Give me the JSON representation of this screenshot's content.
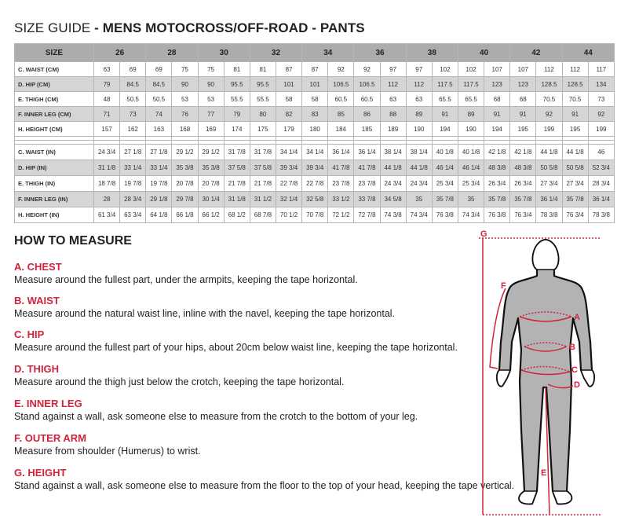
{
  "title": {
    "prefix": "SIZE GUIDE",
    "bold": " - MENS MOTOCROSS/OFF-ROAD - PANTS"
  },
  "table": {
    "size_label": "SIZE",
    "sizes": [
      "26",
      "28",
      "30",
      "32",
      "34",
      "36",
      "38",
      "40",
      "42",
      "44"
    ],
    "cm_rows": [
      {
        "label": "C. WAIST (CM)",
        "values": [
          "63",
          "69",
          "69",
          "75",
          "75",
          "81",
          "81",
          "87",
          "87",
          "92",
          "92",
          "97",
          "97",
          "102",
          "102",
          "107",
          "107",
          "112",
          "112",
          "117"
        ]
      },
      {
        "label": "D. HIP (CM)",
        "values": [
          "79",
          "84.5",
          "84.5",
          "90",
          "90",
          "95.5",
          "95.5",
          "101",
          "101",
          "106.5",
          "106.5",
          "112",
          "112",
          "117.5",
          "117.5",
          "123",
          "123",
          "128.5",
          "128.5",
          "134"
        ]
      },
      {
        "label": "E. THIGH (CM)",
        "values": [
          "48",
          "50.5",
          "50.5",
          "53",
          "53",
          "55.5",
          "55.5",
          "58",
          "58",
          "60.5",
          "60.5",
          "63",
          "63",
          "65.5",
          "65.5",
          "68",
          "68",
          "70.5",
          "70.5",
          "73"
        ]
      },
      {
        "label": "F. INNER LEG (CM)",
        "values": [
          "71",
          "73",
          "74",
          "76",
          "77",
          "79",
          "80",
          "82",
          "83",
          "85",
          "86",
          "88",
          "89",
          "91",
          "89",
          "91",
          "91",
          "92",
          "91",
          "92"
        ]
      },
      {
        "label": "H. HEIGHT (CM)",
        "values": [
          "157",
          "162",
          "163",
          "168",
          "169",
          "174",
          "175",
          "179",
          "180",
          "184",
          "185",
          "189",
          "190",
          "194",
          "190",
          "194",
          "195",
          "199",
          "195",
          "199"
        ]
      }
    ],
    "in_rows": [
      {
        "label": "C. WAIST (IN)",
        "values": [
          "24 3/4",
          "27 1/8",
          "27 1/8",
          "29 1/2",
          "29 1/2",
          "31 7/8",
          "31 7/8",
          "34 1/4",
          "34 1/4",
          "36 1/4",
          "36 1/4",
          "38 1/4",
          "38 1/4",
          "40 1/8",
          "40 1/8",
          "42 1/8",
          "42 1/8",
          "44 1/8",
          "44 1/8",
          "46"
        ]
      },
      {
        "label": "D. HIP (IN)",
        "values": [
          "31 1/8",
          "33 1/4",
          "33 1/4",
          "35 3/8",
          "35 3/8",
          "37 5/8",
          "37 5/8",
          "39 3/4",
          "39 3/4",
          "41 7/8",
          "41 7/8",
          "44 1/8",
          "44 1/8",
          "46 1/4",
          "46 1/4",
          "48 3/8",
          "48 3/8",
          "50 5/8",
          "50 5/8",
          "52 3/4"
        ]
      },
      {
        "label": "E. THIGH (IN)",
        "values": [
          "18 7/8",
          "19 7/8",
          "19 7/8",
          "20 7/8",
          "20 7/8",
          "21 7/8",
          "21 7/8",
          "22 7/8",
          "22 7/8",
          "23 7/8",
          "23 7/8",
          "24 3/4",
          "24 3/4",
          "25 3/4",
          "25 3/4",
          "26 3/4",
          "26 3/4",
          "27 3/4",
          "27 3/4",
          "28 3/4"
        ]
      },
      {
        "label": "F. INNER LEG (IN)",
        "values": [
          "28",
          "28 3/4",
          "29 1/8",
          "29 7/8",
          "30 1/4",
          "31 1/8",
          "31 1/2",
          "32 1/4",
          "32 5/8",
          "33 1/2",
          "33 7/8",
          "34 5/8",
          "35",
          "35 7/8",
          "35",
          "35 7/8",
          "35 7/8",
          "36 1/4",
          "35 7/8",
          "36 1/4"
        ]
      },
      {
        "label": "H. HEIGHT (IN)",
        "values": [
          "61 3/4",
          "63 3/4",
          "64 1/8",
          "66 1/8",
          "66 1/2",
          "68 1/2",
          "68 7/8",
          "70 1/2",
          "70 7/8",
          "72 1/2",
          "72 7/8",
          "74 3/8",
          "74 3/4",
          "76 3/8",
          "74 3/4",
          "76 3/8",
          "76 3/4",
          "78 3/8",
          "76 3/4",
          "78 3/8"
        ]
      }
    ]
  },
  "how_to_measure": {
    "title": "HOW TO MEASURE",
    "items": [
      {
        "heading": "A. CHEST",
        "text": "Measure around the fullest part, under the armpits, keeping the tape horizontal."
      },
      {
        "heading": "B. WAIST",
        "text": "Measure around the natural waist line, inline with the navel, keeping the tape horizontal."
      },
      {
        "heading": "C. HIP",
        "text": "Measure around the fullest part of your hips, about 20cm below waist line, keeping the tape horizontal."
      },
      {
        "heading": "D. THIGH",
        "text": "Measure around the thigh just below the crotch, keeping the tape horizontal."
      },
      {
        "heading": "E. INNER LEG",
        "text": "Stand against a wall, ask someone else to measure from the crotch to the bottom of your leg."
      },
      {
        "heading": "F. OUTER ARM",
        "text": "Measure from shoulder (Humerus) to wrist."
      },
      {
        "heading": "G. HEIGHT",
        "text": "Stand against a wall, ask someone else to measure from the floor to the top of your head, keeping the tape vertical."
      }
    ]
  },
  "figure": {
    "labels": {
      "a": "A",
      "b": "B",
      "c": "C",
      "d": "D",
      "e": "E",
      "f": "F",
      "g": "G"
    }
  },
  "colors": {
    "accent": "#d0243c",
    "header_gray": "#acacac",
    "alt_row_gray": "#d5d5d5",
    "body_gray": "#b3b3b3"
  }
}
